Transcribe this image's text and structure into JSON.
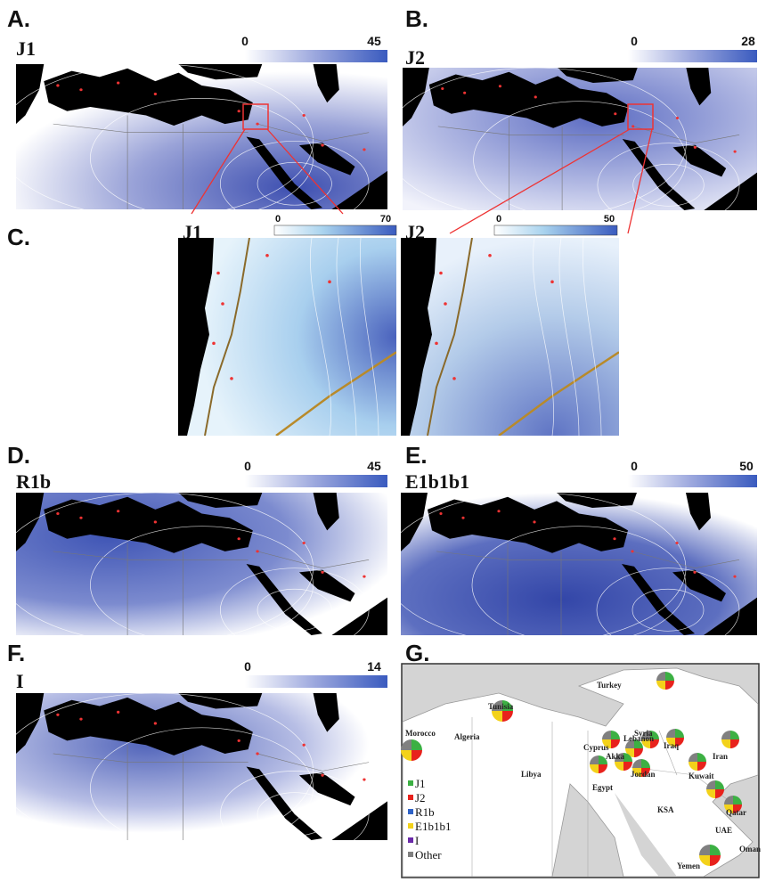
{
  "panels": [
    {
      "letter": "A.",
      "haplogroup": "J1",
      "scale_min": 0,
      "scale_max": 45
    },
    {
      "letter": "B.",
      "haplogroup": "J2",
      "scale_min": 0,
      "scale_max": 28
    },
    {
      "letter": "C.",
      "haplogroup": "J1",
      "scale_min": 0,
      "scale_max": 70
    },
    {
      "haplogroup": "J2",
      "scale_min": 0,
      "scale_max": 50
    },
    {
      "letter": "D.",
      "haplogroup": "R1b",
      "scale_min": 0,
      "scale_max": 45
    },
    {
      "letter": "E.",
      "haplogroup": "E1b1b1",
      "scale_min": 0,
      "scale_max": 50
    },
    {
      "letter": "F.",
      "haplogroup": "I",
      "scale_min": 0,
      "scale_max": 14
    }
  ],
  "map_g": {
    "letter": "G.",
    "countries": [
      "Turkey",
      "Tunisia",
      "Morocco",
      "Algeria",
      "Cyprus",
      "Syria",
      "Lebanon",
      "Akka",
      "Iraq",
      "Iran",
      "Libya",
      "Egypt",
      "Jordan",
      "Kuwait",
      "KSA",
      "Qatar",
      "UAE",
      "Oman",
      "Yemen"
    ],
    "legend": [
      "J1",
      "J2",
      "R1b",
      "E1b1b1",
      "I",
      "Other"
    ]
  }
}
